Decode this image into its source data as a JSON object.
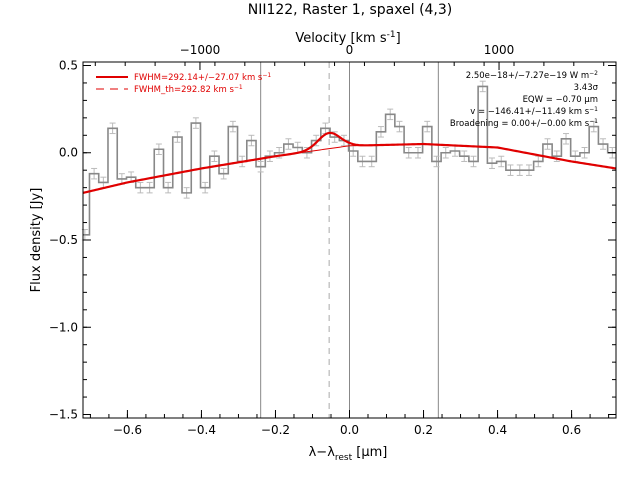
{
  "chart_data": {
    "type": "line",
    "title": "NII122, Raster 1, spaxel (4,3)",
    "xlabel_main": "λ−λ",
    "xlabel_sub": "rest",
    "xlabel_unit": " [μm]",
    "ylabel": "Flux density [Jy]",
    "top_axis_label": "Velocity [km s",
    "top_axis_label_exp": "-1",
    "top_axis_label_end": "]",
    "xlim": [
      -0.72,
      0.72
    ],
    "ylim": [
      -1.52,
      0.52
    ],
    "x_ticks": [
      -0.6,
      -0.4,
      -0.2,
      0.0,
      0.2,
      0.4,
      0.6
    ],
    "x_tick_labels": [
      "−0.6",
      "−0.4",
      "−0.2",
      "0.0",
      "0.2",
      "0.4",
      "0.6"
    ],
    "y_ticks": [
      -1.5,
      -1.0,
      -0.5,
      0.0,
      0.5
    ],
    "y_tick_labels": [
      "−1.5",
      "−1.0",
      "−0.5",
      "0.0",
      "0.5"
    ],
    "top_ticks_velocity": [
      -1000,
      0,
      1000
    ],
    "top_tick_labels": [
      "−1000",
      "0",
      "1000"
    ],
    "velocity_ref_offset_um": 0.0,
    "velocity_scale_um_per_kms": 0.000404,
    "vertical_lines_solid": [
      -0.24,
      0.0,
      0.24
    ],
    "vertical_line_dashed": -0.055,
    "data_step_x": [
      -0.715,
      -0.69,
      -0.665,
      -0.64,
      -0.615,
      -0.59,
      -0.565,
      -0.54,
      -0.515,
      -0.49,
      -0.465,
      -0.44,
      -0.415,
      -0.39,
      -0.365,
      -0.34,
      -0.315,
      -0.29,
      -0.265,
      -0.24,
      -0.215,
      -0.19,
      -0.165,
      -0.14,
      -0.115,
      -0.09,
      -0.065,
      -0.04,
      -0.015,
      0.01,
      0.035,
      0.06,
      0.085,
      0.11,
      0.135,
      0.16,
      0.185,
      0.21,
      0.235,
      0.26,
      0.285,
      0.31,
      0.335,
      0.36,
      0.385,
      0.41,
      0.435,
      0.46,
      0.485,
      0.51,
      0.535,
      0.56,
      0.585,
      0.61,
      0.635,
      0.66,
      0.685,
      0.71
    ],
    "data_step_y": [
      -0.47,
      -0.12,
      -0.17,
      0.14,
      -0.15,
      -0.14,
      -0.2,
      -0.2,
      0.02,
      -0.2,
      0.09,
      -0.23,
      0.17,
      -0.2,
      -0.02,
      -0.12,
      0.15,
      -0.05,
      0.07,
      -0.08,
      -0.02,
      0.0,
      0.05,
      0.03,
      0.0,
      0.07,
      0.14,
      0.09,
      0.07,
      0.01,
      -0.05,
      -0.05,
      0.12,
      0.22,
      0.15,
      0.0,
      0.0,
      0.15,
      -0.05,
      0.0,
      0.01,
      -0.02,
      -0.05,
      0.38,
      -0.06,
      -0.05,
      -0.1,
      -0.1,
      -0.1,
      -0.05,
      0.05,
      -0.02,
      0.08,
      -0.02,
      0.0,
      0.15,
      0.05,
      0.0
    ],
    "continuum_fit": {
      "x": [
        -0.72,
        -0.6,
        -0.4,
        -0.2,
        0.0,
        0.2,
        0.4,
        0.6,
        0.72
      ],
      "y": [
        -0.23,
        -0.17,
        -0.09,
        -0.02,
        0.04,
        0.05,
        0.03,
        -0.05,
        -0.09
      ]
    },
    "line_fit": {
      "center": -0.055,
      "sigma": 0.03,
      "amplitude": 0.09
    },
    "legend": [
      {
        "label": "FWHM=292.14+/−27.07 km s",
        "exp": "−1",
        "style": "solid"
      },
      {
        "label": "FWHM_th=292.82 km s",
        "exp": "−1",
        "style": "dashed"
      }
    ],
    "annotations": [
      {
        "text": "2.50e−18+/−7.27e−19 W m",
        "exp": "−2"
      },
      {
        "text": "3.43σ",
        "exp": ""
      },
      {
        "text": "EQW = −0.70 μm",
        "exp": ""
      },
      {
        "text": "v = −146.41+/−11.49 km s",
        "exp": "−1"
      },
      {
        "text": "Broadening = 0.00+/−0.00 km s",
        "exp": "−1"
      }
    ],
    "colors": {
      "data": "#888888",
      "fit": "#e00000",
      "frame": "#000000",
      "grid": "#888888"
    }
  }
}
